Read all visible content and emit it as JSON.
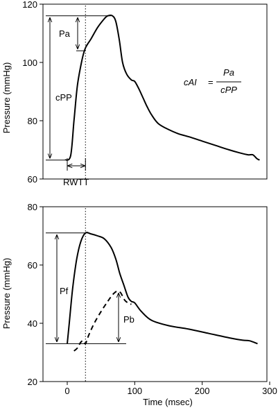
{
  "chart_data": [
    {
      "type": "line",
      "ylabel": "Pressure (mmHg)",
      "ylim": [
        60,
        120
      ],
      "yticks": [
        "60",
        "80",
        "100",
        "120"
      ],
      "xlim": [
        -35,
        300
      ],
      "series": [
        {
          "name": "",
          "x": [
            -3,
            5,
            10,
            15,
            22,
            27,
            35,
            45,
            55,
            60,
            67,
            72,
            77,
            82,
            88,
            95,
            100,
            106,
            112,
            118,
            125,
            135,
            150,
            165,
            180,
            200,
            220,
            240,
            255,
            268,
            275,
            281,
            285
          ],
          "y": [
            66.5,
            68,
            80,
            92,
            101,
            105,
            108,
            112,
            115,
            116,
            116,
            114,
            108,
            100,
            96,
            94,
            93.5,
            91,
            88,
            85,
            82,
            79,
            77,
            75.5,
            74.5,
            73,
            71.5,
            70,
            69,
            68.3,
            68.3,
            67,
            66.5
          ]
        }
      ],
      "annotations": {
        "Pa": "Pa",
        "cPP": "cPP",
        "RWTT": "RWTT",
        "formula": {
          "lhs": "cAI",
          "eq": "=",
          "num": "Pa",
          "den": "cPP"
        }
      }
    },
    {
      "type": "line",
      "ylabel": "Pressure (mmHg)",
      "xlabel": "Time (msec)",
      "ylim": [
        20,
        80
      ],
      "yticks": [
        "20",
        "40",
        "60",
        "80"
      ],
      "xlim": [
        -35,
        300
      ],
      "xticks": [
        "0",
        "100",
        "200",
        "300"
      ],
      "series": [
        {
          "name": "",
          "style": "solid",
          "x": [
            0,
            3,
            8,
            14,
            20,
            27,
            35,
            45,
            55,
            65,
            72,
            78,
            84,
            90,
            95,
            100,
            110,
            125,
            150,
            180,
            210,
            240,
            260,
            270,
            282
          ],
          "y": [
            33,
            40,
            52,
            62,
            68,
            71,
            70.7,
            70,
            69,
            66,
            62,
            57,
            53,
            49,
            47.5,
            47,
            44,
            41,
            39.2,
            38,
            36.5,
            35,
            34.2,
            34,
            33
          ]
        },
        {
          "name": "",
          "style": "dashed",
          "x": [
            10,
            15,
            20,
            24,
            27,
            32,
            40,
            50,
            60,
            68,
            74,
            79,
            85,
            90,
            95
          ],
          "y": [
            30.5,
            31.5,
            33.5,
            34,
            33,
            36,
            40,
            44,
            47.5,
            50,
            51,
            50.5,
            48,
            47,
            46.5
          ]
        }
      ],
      "annotations": {
        "Pf": "Pf",
        "Pb": "Pb"
      }
    }
  ]
}
